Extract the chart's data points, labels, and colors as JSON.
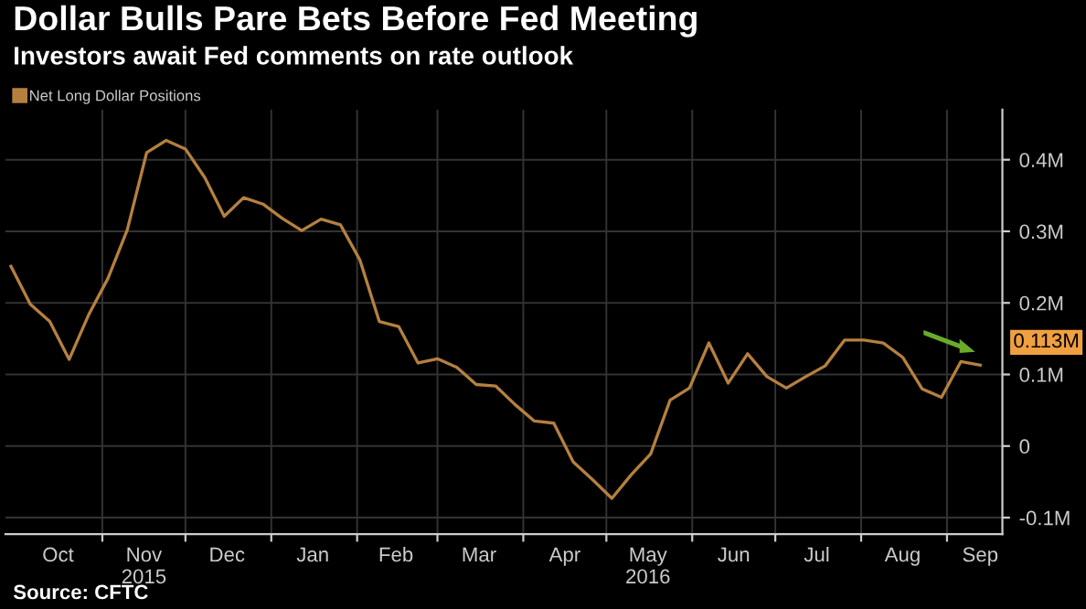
{
  "chart_data": {
    "type": "line",
    "title": "Dollar Bulls Pare Bets Before Fed Meeting",
    "subtitle": "Investors await Fed comments on rate outlook",
    "x": [
      "2015-09-29",
      "2015-10-06",
      "2015-10-13",
      "2015-10-20",
      "2015-10-27",
      "2015-11-03",
      "2015-11-10",
      "2015-11-17",
      "2015-11-24",
      "2015-12-01",
      "2015-12-08",
      "2015-12-15",
      "2015-12-22",
      "2015-12-29",
      "2016-01-05",
      "2016-01-12",
      "2016-01-19",
      "2016-01-26",
      "2016-02-02",
      "2016-02-09",
      "2016-02-16",
      "2016-02-23",
      "2016-03-01",
      "2016-03-08",
      "2016-03-15",
      "2016-03-22",
      "2016-03-29",
      "2016-04-05",
      "2016-04-12",
      "2016-04-19",
      "2016-04-26",
      "2016-05-03",
      "2016-05-10",
      "2016-05-17",
      "2016-05-24",
      "2016-05-31",
      "2016-06-07",
      "2016-06-14",
      "2016-06-21",
      "2016-06-28",
      "2016-07-05",
      "2016-07-12",
      "2016-07-19",
      "2016-07-26",
      "2016-08-02",
      "2016-08-09",
      "2016-08-16",
      "2016-08-23",
      "2016-08-30",
      "2016-09-06",
      "2016-09-13"
    ],
    "series": [
      {
        "name": "Net Long Dollar Positions",
        "color": "#b5803f",
        "values": [
          0.251,
          0.198,
          0.174,
          0.121,
          0.183,
          0.234,
          0.302,
          0.41,
          0.427,
          0.415,
          0.375,
          0.321,
          0.347,
          0.338,
          0.318,
          0.301,
          0.317,
          0.309,
          0.26,
          0.174,
          0.167,
          0.116,
          0.122,
          0.11,
          0.086,
          0.084,
          0.058,
          0.035,
          0.032,
          -0.022,
          -0.047,
          -0.073,
          -0.04,
          -0.011,
          0.064,
          0.081,
          0.144,
          0.088,
          0.129,
          0.097,
          0.081,
          0.097,
          0.112,
          0.148,
          0.148,
          0.144,
          0.124,
          0.08,
          0.068,
          0.118,
          0.113
        ]
      }
    ],
    "xlim": [
      "2015-09-27",
      "2016-09-21"
    ],
    "xticks": [
      {
        "value": "2015-10-16",
        "label": "Oct"
      },
      {
        "value": "2015-11-01",
        "label": null
      },
      {
        "value": "2015-11-16",
        "label": "Nov\n2015"
      },
      {
        "value": "2015-12-01",
        "label": null
      },
      {
        "value": "2015-12-16",
        "label": "Dec"
      },
      {
        "value": "2016-01-01",
        "label": null
      },
      {
        "value": "2016-01-16",
        "label": "Jan"
      },
      {
        "value": "2016-02-01",
        "label": null
      },
      {
        "value": "2016-02-15",
        "label": "Feb"
      },
      {
        "value": "2016-03-01",
        "label": null
      },
      {
        "value": "2016-03-16",
        "label": "Mar"
      },
      {
        "value": "2016-04-01",
        "label": null
      },
      {
        "value": "2016-04-16",
        "label": "Apr"
      },
      {
        "value": "2016-05-01",
        "label": null
      },
      {
        "value": "2016-05-16",
        "label": "May\n2016"
      },
      {
        "value": "2016-06-01",
        "label": null
      },
      {
        "value": "2016-06-16",
        "label": "Jun"
      },
      {
        "value": "2016-07-01",
        "label": null
      },
      {
        "value": "2016-07-16",
        "label": "Jul"
      },
      {
        "value": "2016-08-01",
        "label": null
      },
      {
        "value": "2016-08-16",
        "label": "Aug"
      },
      {
        "value": "2016-09-01",
        "label": null
      },
      {
        "value": "2016-09-13",
        "label": "Sep"
      }
    ],
    "ylim": [
      -0.123,
      0.47
    ],
    "yticks": [
      {
        "value": -0.1,
        "label": "-0.1M"
      },
      0,
      {
        "value": 0.1,
        "label": "0.1M"
      },
      {
        "value": 0.2,
        "label": "0.2M"
      },
      {
        "value": 0.3,
        "label": "0.3M"
      },
      {
        "value": 0.4,
        "label": "0.4M"
      }
    ],
    "grid": true,
    "legend": "top left",
    "annotations": [
      {
        "text": "0.113M",
        "x": "2016-09-13",
        "y": 0.113
      },
      "Source: CFTC"
    ]
  }
}
